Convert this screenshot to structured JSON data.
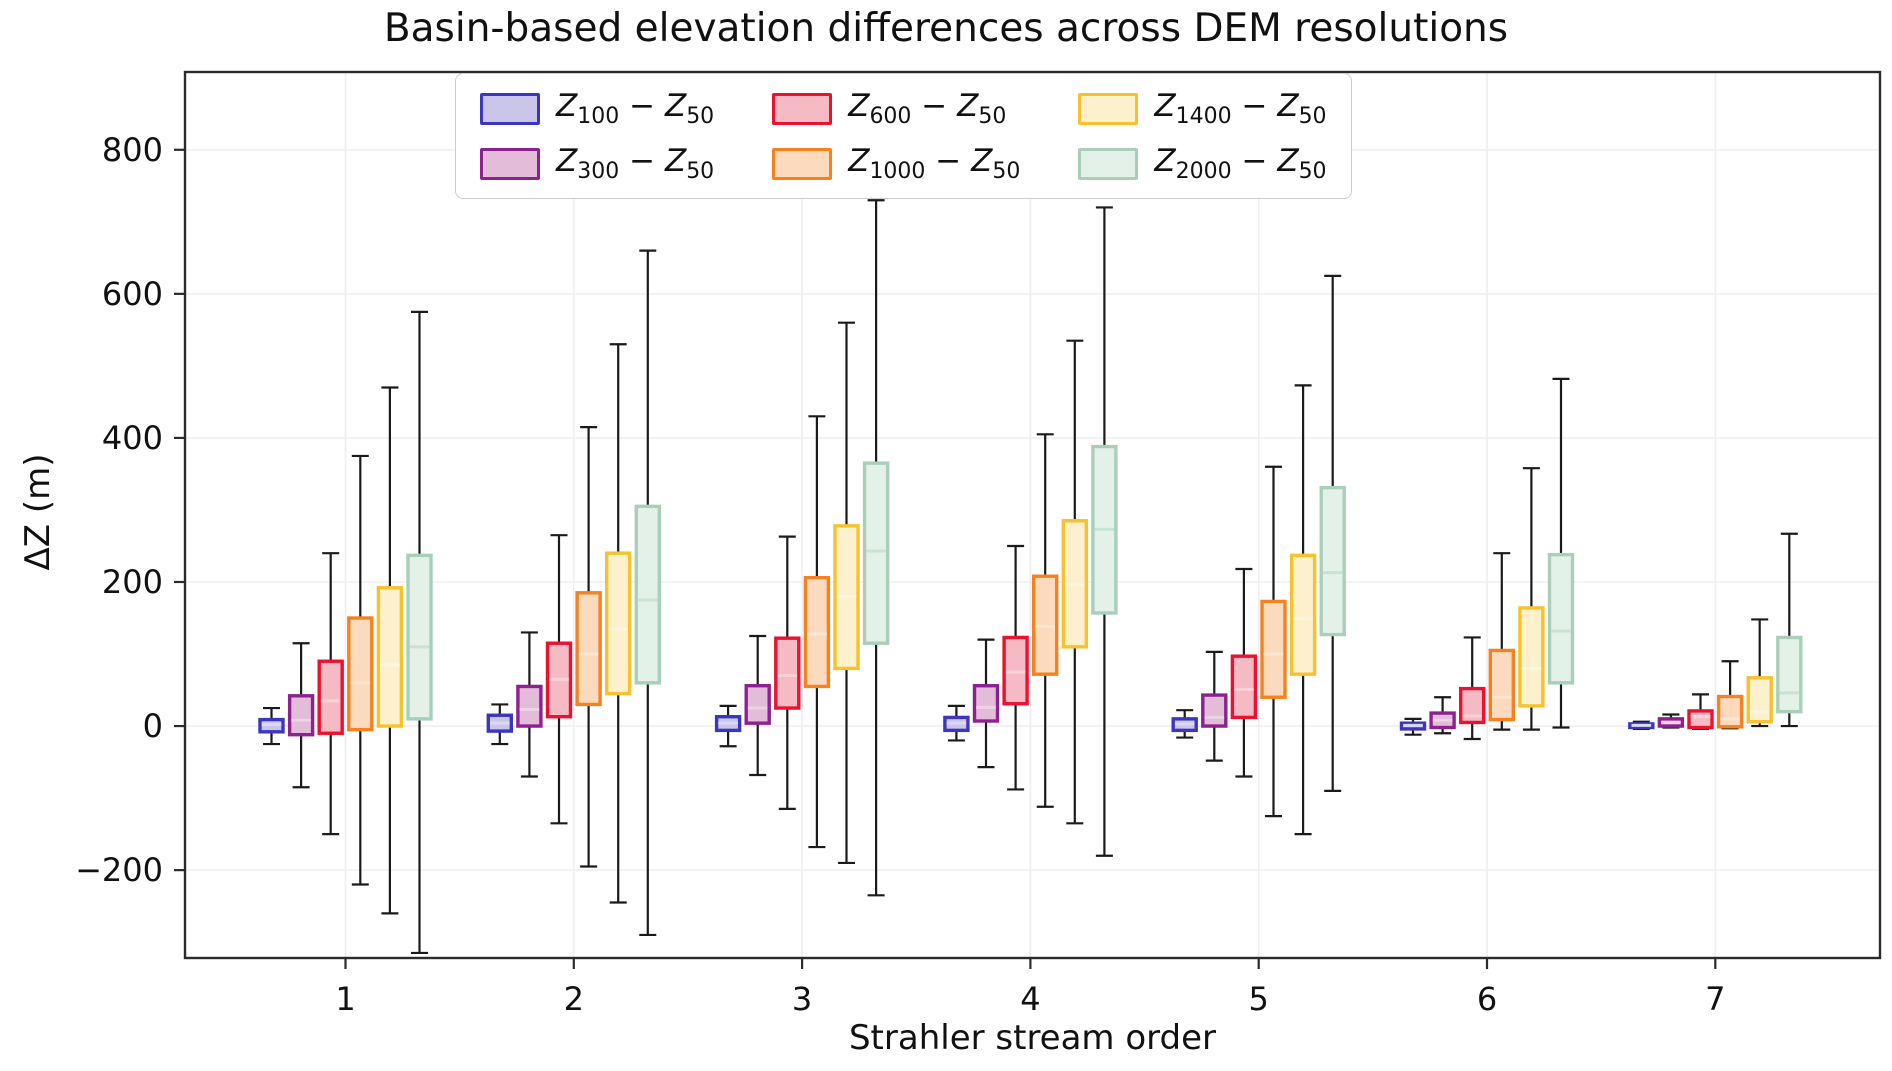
{
  "title": "Basin-based elevation differences across DEM resolutions",
  "axes": {
    "x_label": "Strahler stream order",
    "y_label": "ΔZ (m)",
    "x_tick_labels": [
      "1",
      "2",
      "3",
      "4",
      "5",
      "6",
      "7"
    ],
    "y_tick_labels": [
      "−200",
      "0",
      "200",
      "400",
      "600",
      "800"
    ],
    "y_tick_values": [
      -200,
      0,
      200,
      400,
      600,
      800
    ],
    "ylim": [
      -322,
      908
    ],
    "grid": "faint horizontal and vertical gridlines at ticks"
  },
  "legend": {
    "position": "upper center inside plot",
    "items": [
      {
        "sub_a": "100",
        "sub_b": "50"
      },
      {
        "sub_a": "300",
        "sub_b": "50"
      },
      {
        "sub_a": "600",
        "sub_b": "50"
      },
      {
        "sub_a": "1000",
        "sub_b": "50"
      },
      {
        "sub_a": "1400",
        "sub_b": "50"
      },
      {
        "sub_a": "2000",
        "sub_b": "50"
      }
    ]
  },
  "chart_data": {
    "type": "boxplot",
    "title": "Basin-based elevation differences across DEM resolutions",
    "xlabel": "Strahler stream order",
    "ylabel": "ΔZ (m)",
    "categories": [
      1,
      2,
      3,
      4,
      5,
      6,
      7
    ],
    "ylim": [
      -322,
      908
    ],
    "box_format": "[whisker_low, q1, median, q3, whisker_high] in meters, one per stream order 1..7",
    "series": [
      {
        "name": "Z100 − Z50",
        "edge": "#3d35c0",
        "fill": "#c9c6ea",
        "median_color": "#dcd9f4",
        "boxes": [
          [
            -25,
            -8,
            2,
            9,
            25
          ],
          [
            -25,
            -7,
            4,
            15,
            30
          ],
          [
            -28,
            -6,
            4,
            13,
            28
          ],
          [
            -20,
            -6,
            4,
            12,
            28
          ],
          [
            -16,
            -6,
            3,
            10,
            22
          ],
          [
            -12,
            -4,
            1,
            4,
            10
          ],
          [
            -4,
            -2,
            1,
            3,
            6
          ]
        ]
      },
      {
        "name": "Z300 − Z50",
        "edge": "#8d2190",
        "fill": "#e2bcd9",
        "median_color": "#ecd2e4",
        "boxes": [
          [
            -85,
            -12,
            8,
            42,
            115
          ],
          [
            -70,
            0,
            23,
            55,
            130
          ],
          [
            -68,
            4,
            25,
            56,
            125
          ],
          [
            -57,
            7,
            26,
            56,
            120
          ],
          [
            -48,
            0,
            12,
            43,
            103
          ],
          [
            -10,
            -2,
            8,
            18,
            40
          ],
          [
            -2,
            0,
            5,
            10,
            16
          ]
        ]
      },
      {
        "name": "Z600 − Z50",
        "edge": "#ea1230",
        "fill": "#f6bac4",
        "median_color": "#f9d2d8",
        "boxes": [
          [
            -150,
            -10,
            35,
            90,
            240
          ],
          [
            -135,
            13,
            65,
            115,
            265
          ],
          [
            -115,
            25,
            70,
            122,
            263
          ],
          [
            -88,
            31,
            75,
            123,
            250
          ],
          [
            -70,
            12,
            51,
            97,
            218
          ],
          [
            -18,
            5,
            14,
            52,
            123
          ],
          [
            -4,
            -2,
            13,
            21,
            44
          ]
        ]
      },
      {
        "name": "Z1000 − Z50",
        "edge": "#f5821f",
        "fill": "#fbdabd",
        "median_color": "#fce6d2",
        "boxes": [
          [
            -220,
            -5,
            60,
            150,
            375
          ],
          [
            -195,
            30,
            100,
            185,
            415
          ],
          [
            -168,
            55,
            128,
            206,
            430
          ],
          [
            -112,
            72,
            138,
            208,
            405
          ],
          [
            -125,
            40,
            100,
            173,
            360
          ],
          [
            -5,
            9,
            40,
            105,
            240
          ],
          [
            -3,
            -1,
            10,
            41,
            90
          ]
        ]
      },
      {
        "name": "Z1400 − Z50",
        "edge": "#f6c22d",
        "fill": "#fcf0cd",
        "median_color": "#fdf6df",
        "boxes": [
          [
            -260,
            0,
            85,
            192,
            470
          ],
          [
            -245,
            45,
            135,
            240,
            530
          ],
          [
            -190,
            80,
            180,
            278,
            560
          ],
          [
            -135,
            110,
            196,
            285,
            535
          ],
          [
            -150,
            72,
            149,
            237,
            473
          ],
          [
            -5,
            28,
            80,
            164,
            358
          ],
          [
            0,
            6,
            20,
            67,
            148
          ]
        ]
      },
      {
        "name": "Z2000 − Z50",
        "edge": "#a9cfbb",
        "fill": "#e3f1e8",
        "median_color": "#c8e2d4",
        "boxes": [
          [
            -315,
            10,
            110,
            237,
            575
          ],
          [
            -290,
            60,
            175,
            305,
            660
          ],
          [
            -235,
            115,
            243,
            365,
            730
          ],
          [
            -180,
            157,
            273,
            388,
            720
          ],
          [
            -90,
            127,
            213,
            331,
            625
          ],
          [
            -2,
            60,
            132,
            238,
            482
          ],
          [
            0,
            20,
            46,
            123,
            267
          ]
        ]
      }
    ],
    "legend_entries": [
      "Z100 − Z50",
      "Z300 − Z50",
      "Z600 − Z50",
      "Z1000 − Z50",
      "Z1400 − Z50",
      "Z2000 − Z50"
    ],
    "colors": {
      "whisker": "#1a1a1a",
      "spine": "#2b2b2b",
      "gridline": "#efefef",
      "background": "#ffffff"
    }
  }
}
